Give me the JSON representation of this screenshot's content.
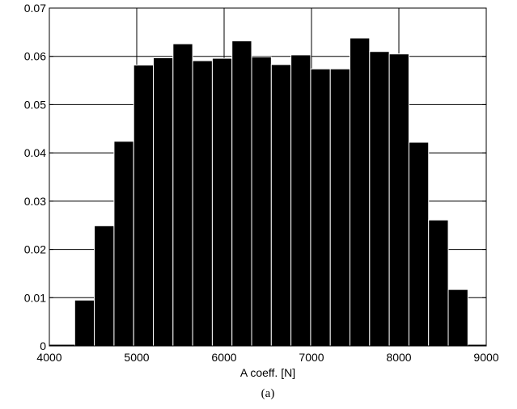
{
  "chart_data": {
    "type": "bar",
    "subtype": "histogram",
    "xlabel": "A coeff. [N]",
    "ylabel": "",
    "caption": "(a)",
    "xlim": [
      4000,
      9000
    ],
    "ylim": [
      0,
      0.07
    ],
    "grid": true,
    "bar_color": "#000000",
    "x_ticks": [
      "4000",
      "5000",
      "6000",
      "7000",
      "8000",
      "9000"
    ],
    "y_ticks": [
      "0",
      "0.01",
      "0.02",
      "0.03",
      "0.04",
      "0.05",
      "0.06",
      "0.07"
    ],
    "bin_edges": [
      4290,
      4515,
      4740,
      4965,
      5190,
      5415,
      5640,
      5865,
      6090,
      6315,
      6540,
      6765,
      6990,
      7215,
      7440,
      7665,
      7890,
      8115,
      8340,
      8565,
      8790
    ],
    "values": [
      0.0095,
      0.0249,
      0.0424,
      0.0582,
      0.0597,
      0.0626,
      0.0591,
      0.0596,
      0.0632,
      0.0599,
      0.0583,
      0.0603,
      0.0574,
      0.0574,
      0.0638,
      0.061,
      0.0605,
      0.0422,
      0.0261,
      0.0117
    ]
  }
}
